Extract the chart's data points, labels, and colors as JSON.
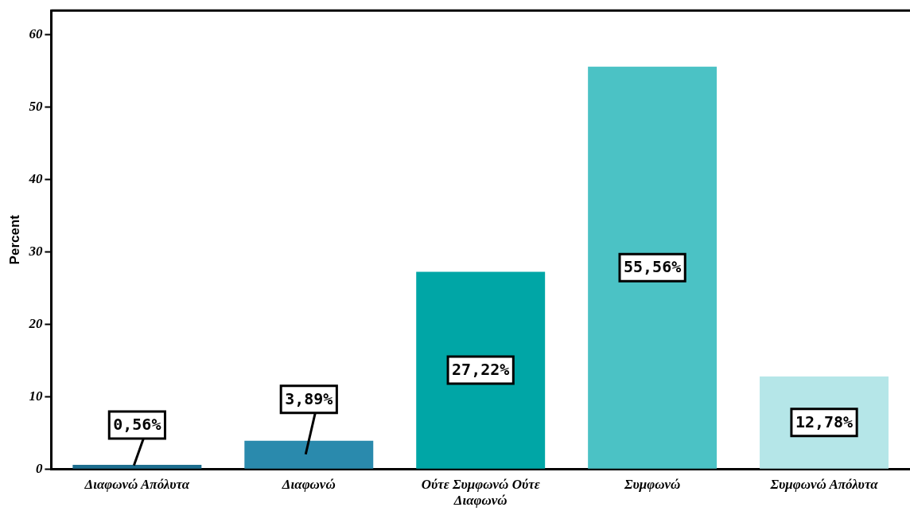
{
  "chart_data": {
    "type": "bar",
    "ylabel": "Percent",
    "categories": [
      "Διαφωνώ Απόλυτα",
      "Διαφωνώ",
      "Ούτε Συμφωνώ Ούτε Διαφωνώ",
      "Συμφωνώ",
      "Συμφωνώ Απόλυτα"
    ],
    "values": [
      0.56,
      3.89,
      27.22,
      55.56,
      12.78
    ],
    "colors": [
      "#1d6e8f",
      "#2a8aad",
      "#00a6a6",
      "#4bc2c5",
      "#b5e6e8"
    ],
    "value_labels": [
      "0,56%",
      "3,89%",
      "27,22%",
      "55,56%",
      "12,78%"
    ],
    "ylim": [
      0,
      63.3
    ],
    "yticks": [
      0,
      10,
      20,
      30,
      40,
      50,
      60
    ],
    "grid": false,
    "legend": false
  }
}
